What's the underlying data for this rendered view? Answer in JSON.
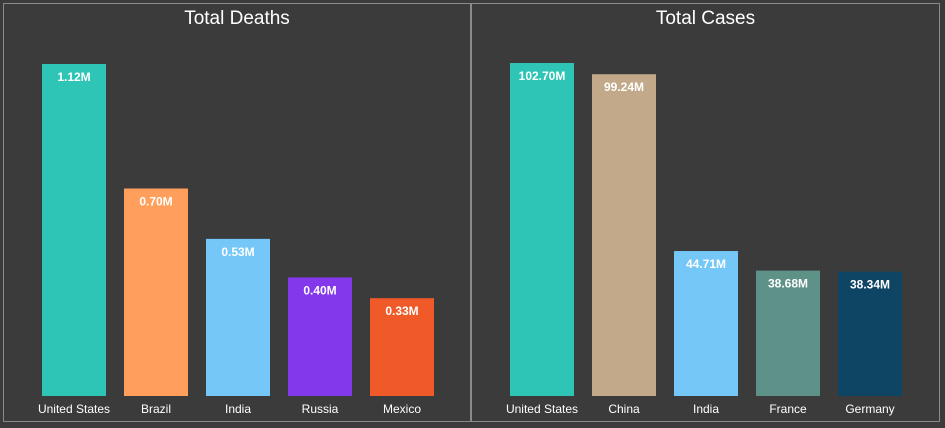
{
  "chart_data": [
    {
      "type": "bar",
      "title": "Total Deaths",
      "xlabel": "",
      "ylabel": "",
      "ylim": [
        0,
        1.12
      ],
      "grid": false,
      "categories": [
        "United States",
        "Brazil",
        "India",
        "Russia",
        "Mexico"
      ],
      "values": [
        1.12,
        0.7,
        0.53,
        0.4,
        0.33
      ],
      "data_labels": [
        "1.12M",
        "0.70M",
        "0.53M",
        "0.40M",
        "0.33M"
      ],
      "colors": [
        "#2ec4b6",
        "#ff9f5b",
        "#74c7f7",
        "#8338ec",
        "#f05a28"
      ]
    },
    {
      "type": "bar",
      "title": "Total Cases",
      "xlabel": "",
      "ylabel": "",
      "ylim": [
        0,
        102.7
      ],
      "grid": false,
      "categories": [
        "United States",
        "China",
        "India",
        "France",
        "Germany"
      ],
      "values": [
        102.7,
        99.24,
        44.71,
        38.68,
        38.34
      ],
      "data_labels": [
        "102.70M",
        "99.24M",
        "44.71M",
        "38.68M",
        "38.34M"
      ],
      "colors": [
        "#2ec4b6",
        "#c2a989",
        "#74c7f7",
        "#5e9187",
        "#0f4564"
      ]
    }
  ]
}
